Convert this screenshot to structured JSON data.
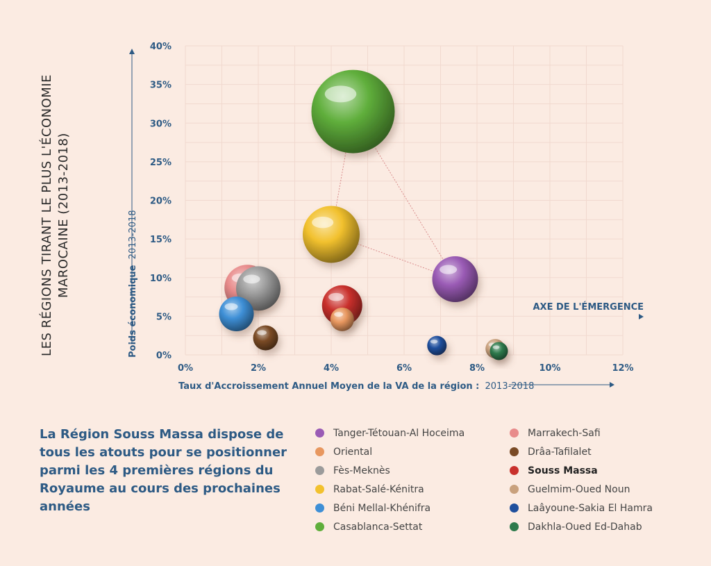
{
  "title_lines": [
    "LES RÉGIONS TIRANT LE PLUS L'ÉCONOMIE",
    "MAROCAINE (2013-2018)"
  ],
  "message": "La Région Souss Massa dispose de tous les atouts pour se positionner parmi les 4 premières régions du Royaume au cours des prochaines années",
  "chart_data": {
    "type": "scatter",
    "xlabel": "Taux d'Accroissement Annuel Moyen de la VA de la région :",
    "xlabel_period": "2013-2018",
    "ylabel": "Poids économique",
    "ylabel_period": "2013-2018",
    "annotation": "AXE DE L'ÉMERGENCE",
    "xlim": [
      0,
      12
    ],
    "ylim": [
      0,
      40
    ],
    "x_ticks": [
      "0%",
      "2%",
      "4%",
      "6%",
      "8%",
      "10%",
      "12%"
    ],
    "y_ticks": [
      "0%",
      "5%",
      "10%",
      "15%",
      "20%",
      "25%",
      "30%",
      "35%",
      "40%"
    ],
    "grid": true,
    "triangle_vertices": [
      "Casablanca-Settat",
      "Rabat-Salé-Kénitra",
      "Tanger-Tétouan-Al Hoceima"
    ],
    "series": [
      {
        "name": "Tanger-Tétouan-Al Hoceima",
        "x": 7.4,
        "y": 9.8,
        "color": "#9a5bb5",
        "size": 3.3
      },
      {
        "name": "Oriental",
        "x": 4.3,
        "y": 4.6,
        "color": "#e8975f",
        "size": 1.7
      },
      {
        "name": "Fès-Meknès",
        "x": 2.0,
        "y": 8.6,
        "color": "#9b9b9b",
        "size": 3.2
      },
      {
        "name": "Rabat-Salé-Kénitra",
        "x": 4.0,
        "y": 15.6,
        "color": "#f2c12e",
        "size": 4.1
      },
      {
        "name": "Béni Mellal-Khénifra",
        "x": 1.4,
        "y": 5.3,
        "color": "#3e8fd6",
        "size": 2.5
      },
      {
        "name": "Casablanca-Settat",
        "x": 4.6,
        "y": 31.5,
        "color": "#5fae3b",
        "size": 6.0
      },
      {
        "name": "Marrakech-Safi",
        "x": 1.7,
        "y": 8.7,
        "color": "#e88b8b",
        "size": 3.3
      },
      {
        "name": "Drâa-Tafilalet",
        "x": 2.2,
        "y": 2.2,
        "color": "#7a4a25",
        "size": 1.8
      },
      {
        "name": "Souss Massa",
        "x": 4.3,
        "y": 6.4,
        "color": "#c9302c",
        "size": 2.9,
        "bold": true
      },
      {
        "name": "Guelmim-Oued Noun",
        "x": 8.5,
        "y": 0.8,
        "color": "#c9a17d",
        "size": 1.4
      },
      {
        "name": "Laâyoune-Sakia El Hamra",
        "x": 6.9,
        "y": 1.2,
        "color": "#1f4f9d",
        "size": 1.4
      },
      {
        "name": "Dakhla-Oued Ed-Dahab",
        "x": 8.6,
        "y": 0.5,
        "color": "#2e7a4c",
        "size": 1.3
      }
    ],
    "legend_order": [
      "Tanger-Tétouan-Al Hoceima",
      "Oriental",
      "Fès-Meknès",
      "Rabat-Salé-Kénitra",
      "Béni Mellal-Khénifra",
      "Casablanca-Settat",
      "Marrakech-Safi",
      "Drâa-Tafilalet",
      "Souss Massa",
      "Guelmim-Oued Noun",
      "Laâyoune-Sakia El Hamra",
      "Dakhla-Oued Ed-Dahab"
    ]
  },
  "colors": {
    "background": "#fbebe2",
    "axis_text": "#2d5a84",
    "triangle": "#d98c8c"
  }
}
